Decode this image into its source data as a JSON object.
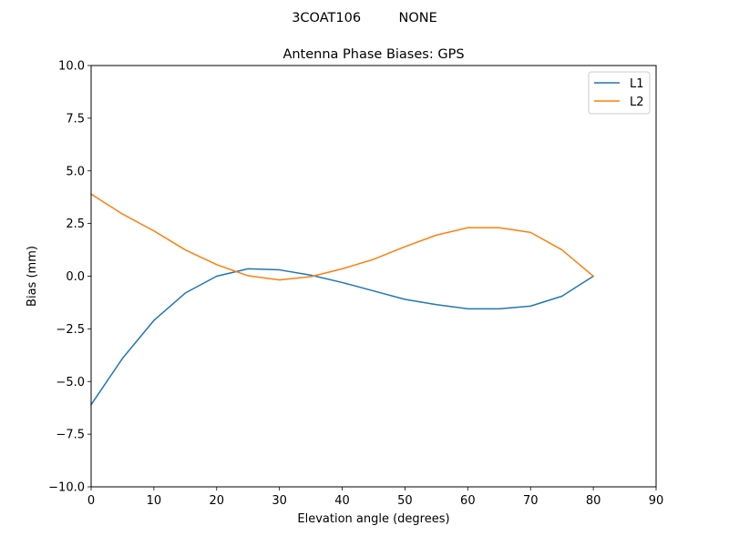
{
  "chart_data": {
    "type": "line",
    "suptitle": "3COAT106         NONE",
    "title": "Antenna Phase Biases: GPS",
    "xlabel": "Elevation angle (degrees)",
    "ylabel": "Bias (mm)",
    "xlim": [
      0,
      90
    ],
    "ylim": [
      -10,
      10
    ],
    "xticks": [
      0,
      10,
      20,
      30,
      40,
      50,
      60,
      70,
      80,
      90
    ],
    "xtick_labels": [
      "0",
      "10",
      "20",
      "30",
      "40",
      "50",
      "60",
      "70",
      "80",
      "90"
    ],
    "yticks": [
      -10,
      -7.5,
      -5,
      -2.5,
      0,
      2.5,
      5,
      7.5,
      10
    ],
    "ytick_labels": [
      "−10.0",
      "−7.5",
      "−5.0",
      "−2.5",
      "0.0",
      "2.5",
      "5.0",
      "7.5",
      "10.0"
    ],
    "grid": false,
    "legend_position": "top-right",
    "x": [
      0,
      5,
      10,
      15,
      20,
      25,
      30,
      35,
      40,
      45,
      50,
      55,
      60,
      65,
      70,
      75,
      80
    ],
    "series": [
      {
        "name": "L1",
        "color": "#1f77b4",
        "values": [
          -6.1,
          -3.9,
          -2.1,
          -0.8,
          0.0,
          0.35,
          0.3,
          0.05,
          -0.3,
          -0.7,
          -1.1,
          -1.35,
          -1.55,
          -1.55,
          -1.42,
          -0.95,
          0.0
        ]
      },
      {
        "name": "L2",
        "color": "#ff7f0e",
        "values": [
          3.9,
          2.95,
          2.15,
          1.25,
          0.55,
          0.02,
          -0.18,
          -0.02,
          0.35,
          0.8,
          1.4,
          1.95,
          2.3,
          2.3,
          2.08,
          1.25,
          0.0
        ]
      }
    ]
  }
}
